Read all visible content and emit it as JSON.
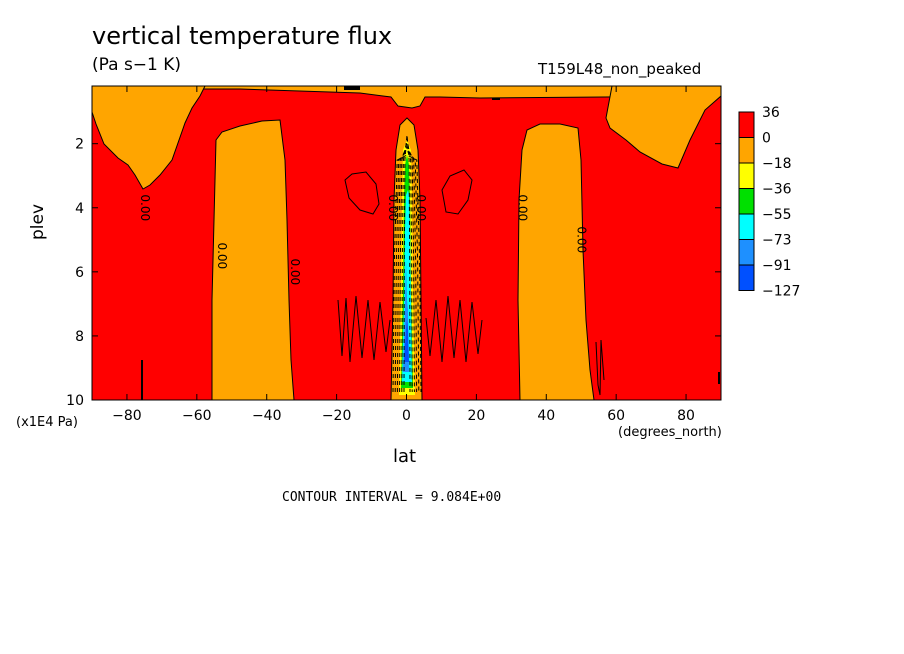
{
  "chart_data": {
    "type": "heatmap",
    "title": "vertical temperature flux",
    "units": "(Pa s−1 K)",
    "run_label": "T159L48_non_peaked",
    "xlabel": "lat",
    "x_units": "(degrees_north)",
    "ylabel": "plev",
    "y_units": "(x1E4 Pa)",
    "x_ticks": [
      -80,
      -60,
      -40,
      -20,
      0,
      20,
      40,
      60,
      80
    ],
    "y_ticks": [
      2,
      4,
      6,
      8,
      10
    ],
    "xlim": [
      -90,
      90
    ],
    "ylim": [
      0.2,
      10
    ],
    "contour_interval_text": "CONTOUR INTERVAL = 9.084E+00",
    "contour_labels": [
      {
        "lat": -75,
        "plev": 4.0,
        "text": "0.00"
      },
      {
        "lat": -53,
        "plev": 5.5,
        "text": "0.00"
      },
      {
        "lat": -32,
        "plev": 6.0,
        "text": "0.00"
      },
      {
        "lat": -4,
        "plev": 4.0,
        "text": "0.00"
      },
      {
        "lat": 4,
        "plev": 4.0,
        "text": "0.00"
      },
      {
        "lat": 33,
        "plev": 4.0,
        "text": "0.00"
      },
      {
        "lat": 50,
        "plev": 5.0,
        "text": "0.00"
      }
    ],
    "legend": {
      "labels": [
        "36",
        "0",
        "−18",
        "−36",
        "−55",
        "−73",
        "−91",
        "−127"
      ],
      "colors": [
        "#ff0000",
        "#ffa500",
        "#ffff00",
        "#00e000",
        "#00ffff",
        "#1e90ff",
        "#0050ff"
      ]
    }
  }
}
